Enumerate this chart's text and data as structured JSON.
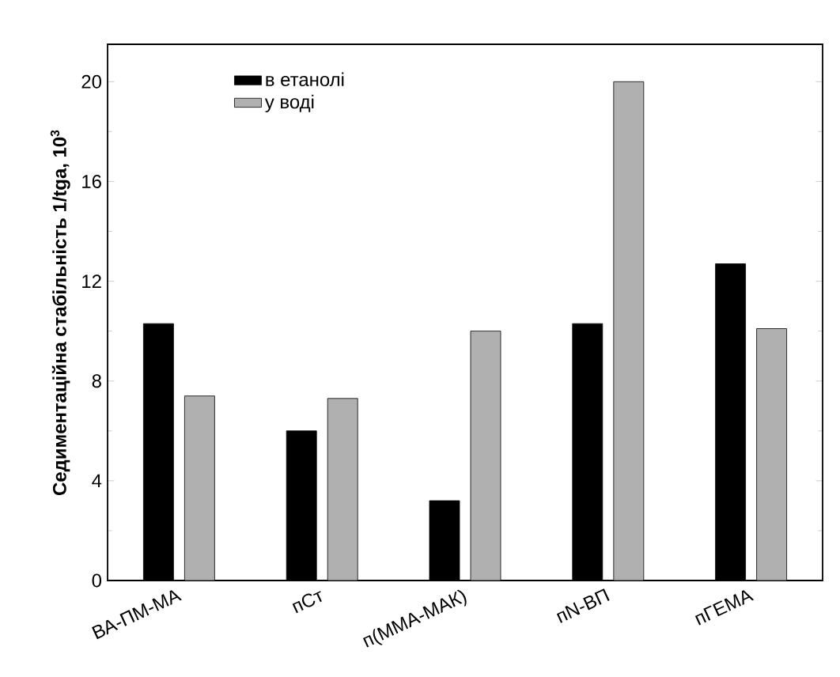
{
  "chart_data": {
    "type": "bar",
    "ylabel": "Седиментаційна стабільність 1/tga, 10$^{3}$",
    "categories": [
      "ВА-ПМ-МА",
      "пСт",
      "п(ММА-МАК)",
      "пN-ВП",
      "пГЕМА"
    ],
    "series": [
      {
        "name": "в етанолі",
        "color": "#000000",
        "values": [
          10.3,
          6.0,
          3.2,
          10.3,
          12.7
        ]
      },
      {
        "name": "у воді",
        "color": "#b0b0b0",
        "values": [
          7.4,
          7.3,
          10.0,
          20.0,
          10.1
        ]
      }
    ],
    "ylim": [
      0,
      21.5
    ],
    "yticks": [
      0,
      4,
      8,
      12,
      16,
      20
    ],
    "legend": "top left"
  }
}
